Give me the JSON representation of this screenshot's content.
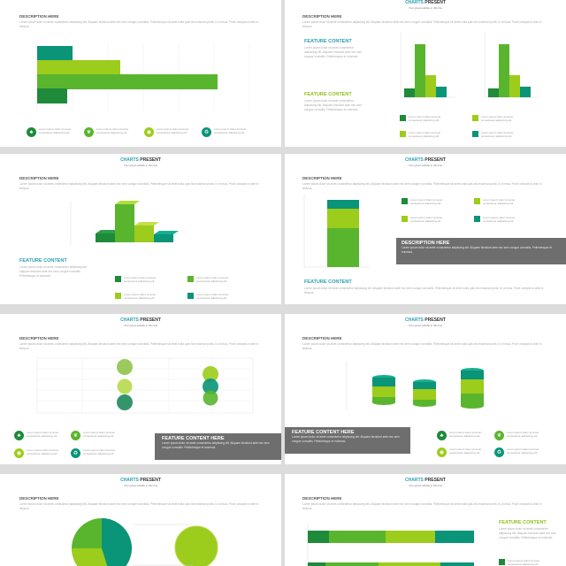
{
  "brand": {
    "part1": "CHARTS",
    "part2": " PRESENT",
    "subtitle": "Your great subtitle in this line"
  },
  "desc_heading": "DESCRIPTION HERE",
  "lorem_long": "Lorem ipsum dolor sit amet consectetur adipiscing elit. Aliquam tincidunt ante nec sem congue convallis. Pellentesque sit amet nulla quis nisi euismod porta. In ut risus. Proin volutpat ut ante in tempus.",
  "lorem_short": "Lorem ipsum dolor sit amet consectetur adipiscing elit. Aliquam tincidunt ante nec sem congue convallis. Pellentesque et euismod.",
  "legend_text": "Lorem ipsum dolor sit amet consectetur adipiscing elit",
  "feature_content": "FEATURE CONTENT",
  "feature_content_here": "FEATURE CONTENT HERE",
  "colors": {
    "dark_green": "#1e8a3a",
    "green": "#5ab52e",
    "lime": "#9ccc1c",
    "teal": "#0a9478",
    "blue_title": "#2a9fb2",
    "gray_box": "#6e6e6e"
  },
  "icons": [
    "tree-icon",
    "leaf-icon",
    "globe-icon",
    "recycle-icon"
  ],
  "chart_data": [
    {
      "type": "bar",
      "orientation": "horizontal",
      "series": [
        {
          "values": [
            20,
            47,
            100
          ]
        }
      ]
    },
    {
      "type": "bar",
      "categories": [
        "",
        "",
        "",
        ""
      ],
      "series": [
        {
          "values": [
            10,
            60,
            25,
            12
          ]
        }
      ]
    },
    {
      "type": "bar",
      "series": [
        {
          "values": [
            10,
            60,
            25,
            12
          ]
        }
      ]
    },
    {
      "type": "bar",
      "series": [
        {
          "values": [
            14,
            60,
            28,
            16
          ]
        }
      ]
    },
    {
      "type": "bar",
      "stacked": true,
      "series": [
        {
          "values": [
            10,
            20,
            50
          ]
        }
      ]
    },
    {
      "type": "scatter",
      "series": [
        {
          "values": [
            [
              2,
              70
            ],
            [
              2,
              45
            ],
            [
              2,
              25
            ],
            [
              4,
              60
            ],
            [
              4,
              42
            ],
            [
              4,
              22
            ]
          ]
        }
      ]
    },
    {
      "type": "bar",
      "series": [
        {
          "values": [
            30,
            35,
            45
          ]
        }
      ]
    },
    {
      "type": "pie",
      "series": [
        {
          "values": [
            35,
            30,
            35
          ]
        }
      ]
    },
    {
      "type": "bar",
      "orientation": "horizontal",
      "stacked": true,
      "series": [
        {
          "values": [
            20,
            50,
            30
          ]
        }
      ]
    }
  ]
}
